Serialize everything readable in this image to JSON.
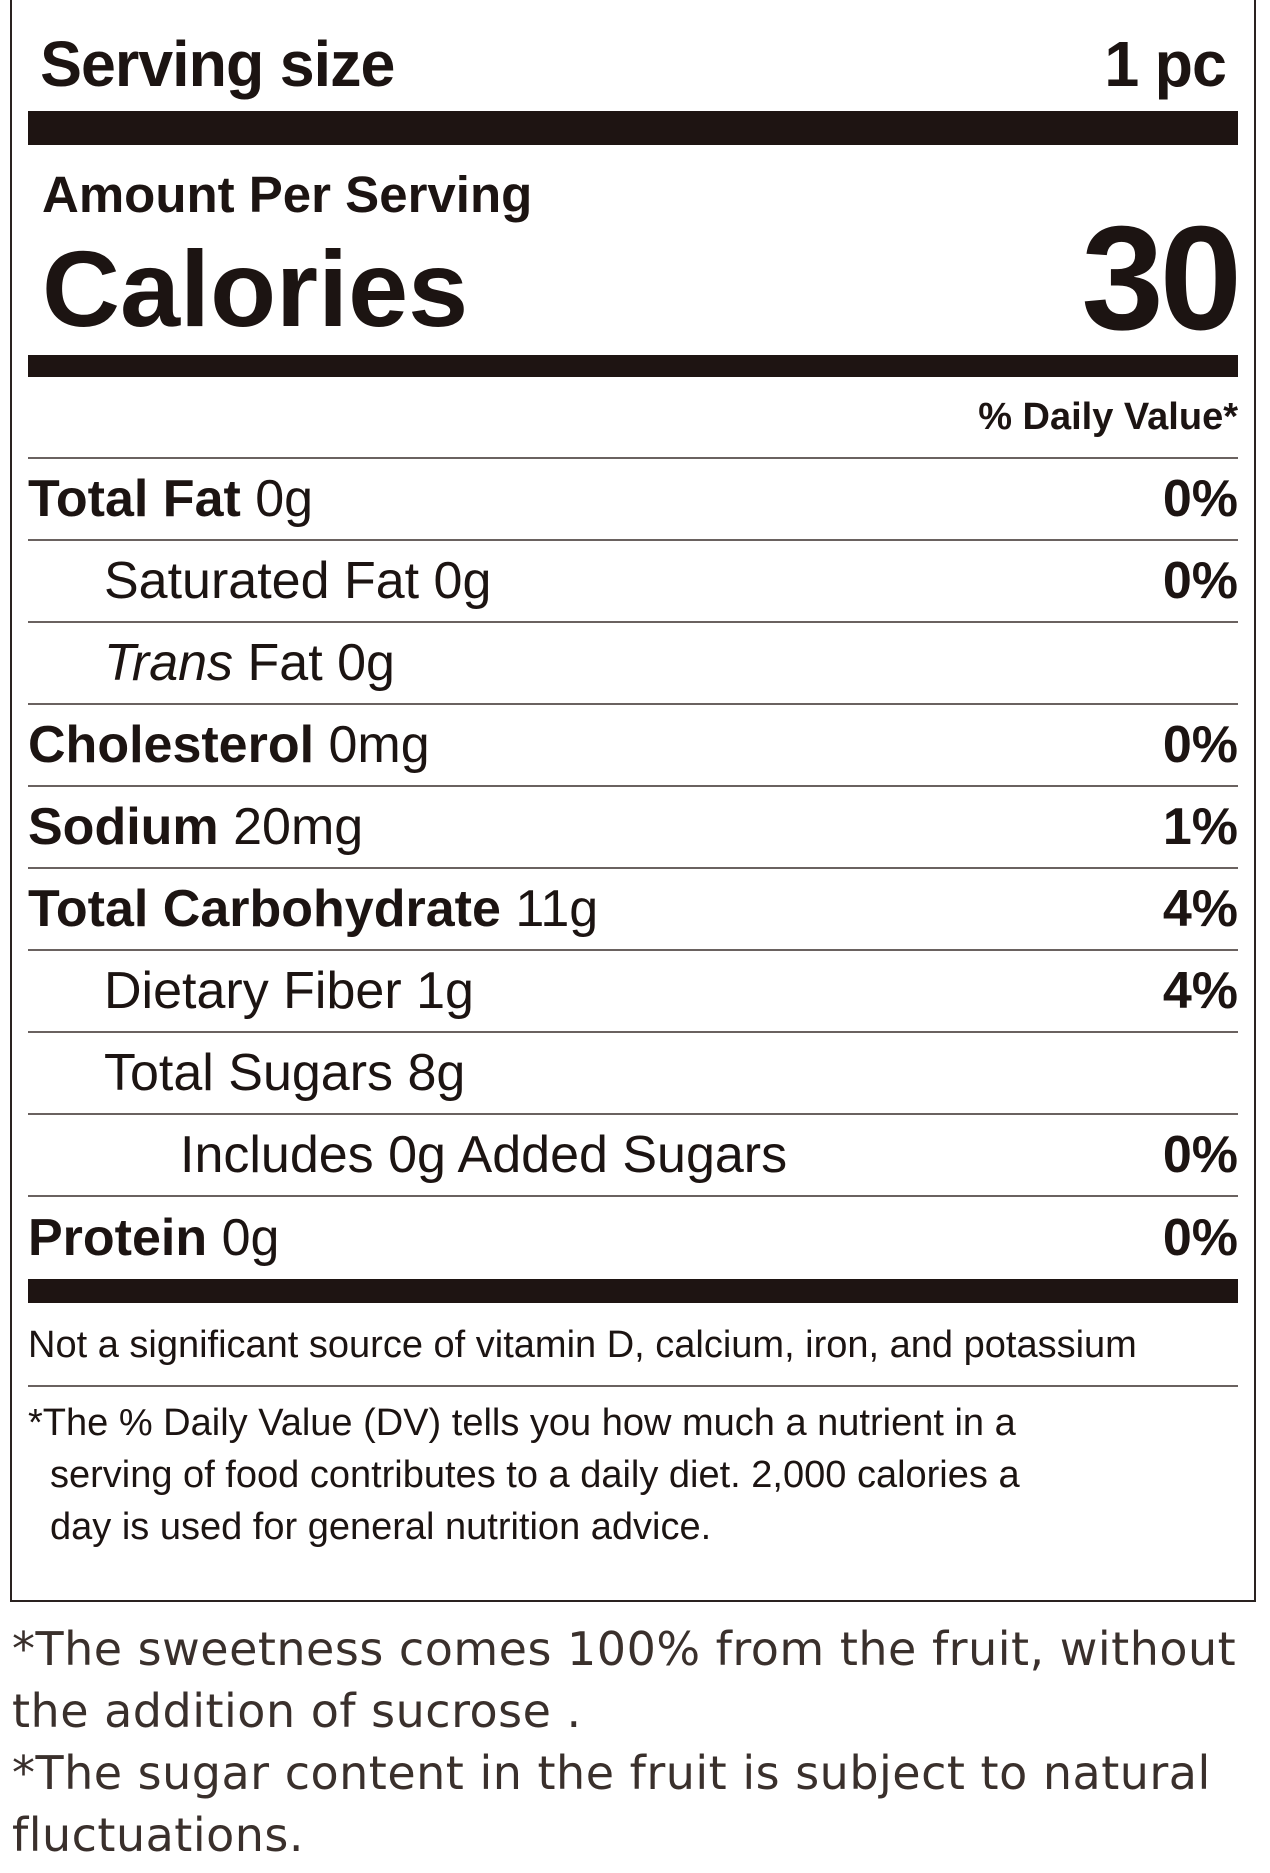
{
  "label": {
    "serving_size_label": "Serving size",
    "serving_size_value": "1 pc",
    "amount_per_serving": "Amount Per Serving",
    "calories_label": "Calories",
    "calories_value": "30",
    "daily_value_header": "% Daily Value*",
    "nutrients": [
      {
        "name": "Total Fat",
        "amount": "0g",
        "dv": "0%"
      },
      {
        "name": "Saturated Fat",
        "amount": "0g",
        "dv": "0%"
      },
      {
        "name_italic": "Trans",
        "name": "Fat",
        "amount": "0g",
        "dv": ""
      },
      {
        "name": "Cholesterol",
        "amount": "0mg",
        "dv": "0%"
      },
      {
        "name": "Sodium",
        "amount": "20mg",
        "dv": "1%"
      },
      {
        "name": "Total Carbohydrate",
        "amount": "11g",
        "dv": "4%"
      },
      {
        "name": "Dietary Fiber",
        "amount": "1g",
        "dv": "4%"
      },
      {
        "name": "Total Sugars",
        "amount": "8g",
        "dv": ""
      },
      {
        "name": "Includes 0g Added Sugars",
        "amount": "",
        "dv": "0%"
      },
      {
        "name": "Protein",
        "amount": "0g",
        "dv": "0%"
      }
    ],
    "not_significant": "Not a significant source of vitamin D, calcium, iron, and potassium",
    "dv_footnote_line1": "*The % Daily Value (DV) tells you how much a nutrient in a",
    "dv_footnote_line2": "serving of food contributes to a daily diet. 2,000 calories a",
    "dv_footnote_line3": "day is used for general nutrition advice."
  },
  "notes": {
    "sweetness": "*The sweetness comes 100% from the fruit, without the addition of sucrose .",
    "fluctuation": "*The sugar content in the fruit is subject to natural fluctuations."
  }
}
